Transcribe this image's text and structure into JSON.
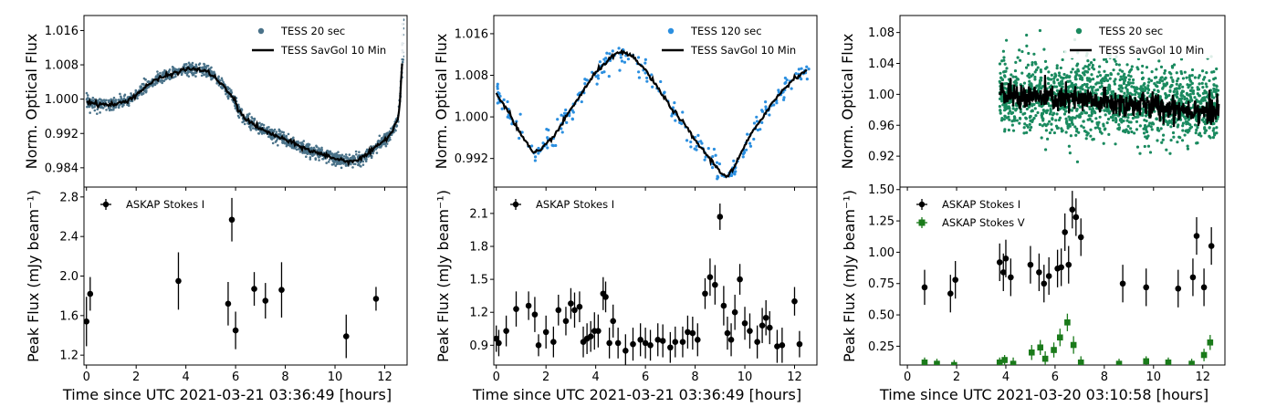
{
  "chart_data": [
    {
      "panel": "A-top",
      "type": "scatter",
      "xlabel": "",
      "ylabel": "Norm. Optical Flux",
      "xlim": [
        -0.1,
        12.9
      ],
      "ylim": [
        0.9795,
        1.0195
      ],
      "yticks": [
        "1.016",
        "1.008",
        "1.000",
        "0.992",
        "0.984"
      ],
      "ytick_values": [
        1.016,
        1.008,
        1.0,
        0.992,
        0.984
      ],
      "xticks": [
        0,
        2,
        4,
        6,
        8,
        10,
        12
      ],
      "colors": {
        "points": "#4a7289",
        "curve": "#000000"
      },
      "series": [
        {
          "name": "TESS 20 sec",
          "style": "dense points"
        },
        {
          "name": "TESS SavGol 10 Min",
          "style": "line",
          "x": [
            0.0,
            0.3,
            0.8,
            1.2,
            1.6,
            2.0,
            2.5,
            3.0,
            3.5,
            4.0,
            4.5,
            5.0,
            5.5,
            5.8,
            5.95,
            6.1,
            6.4,
            7.0,
            8.0,
            9.0,
            10.0,
            10.5,
            11.0,
            11.5,
            12.0,
            12.3,
            12.5,
            12.6,
            12.7
          ],
          "y": [
            0.9995,
            0.999,
            0.9987,
            0.9988,
            0.9995,
            1.001,
            1.0035,
            1.005,
            1.006,
            1.007,
            1.007,
            1.006,
            1.003,
            1.001,
            1.0,
            0.9975,
            0.9955,
            0.993,
            0.9905,
            0.988,
            0.9862,
            0.9855,
            0.986,
            0.988,
            0.9905,
            0.9925,
            0.995,
            0.998,
            1.009
          ]
        }
      ],
      "legend_position": "top-right"
    },
    {
      "panel": "A-bottom",
      "type": "scatter",
      "xlabel": "Time since UTC 2021-03-21 03:36:49 [hours]",
      "ylabel": "Peak Flux (mJy beam⁻¹)",
      "xlim": [
        -0.1,
        12.9
      ],
      "ylim": [
        1.1,
        2.9
      ],
      "yticks": [
        "2.8",
        "2.4",
        "2.0",
        "1.6",
        "1.2"
      ],
      "ytick_values": [
        2.8,
        2.4,
        2.0,
        1.6,
        1.2
      ],
      "xticks": [
        0,
        2,
        4,
        6,
        8,
        10,
        12
      ],
      "series": [
        {
          "name": "ASKAP Stokes I",
          "color": "#000000",
          "x": [
            0.0,
            0.15,
            3.7,
            5.7,
            5.85,
            6.0,
            6.75,
            7.2,
            7.85,
            10.45,
            11.65
          ],
          "y": [
            1.54,
            1.82,
            1.95,
            1.72,
            2.57,
            1.45,
            1.87,
            1.75,
            1.86,
            1.39,
            1.77
          ],
          "err": [
            0.25,
            0.17,
            0.29,
            0.22,
            0.22,
            0.19,
            0.17,
            0.18,
            0.28,
            0.22,
            0.12
          ]
        }
      ],
      "legend_position": "top-left"
    },
    {
      "panel": "B-top",
      "type": "scatter",
      "xlabel": "",
      "ylabel": "Norm. Optical Flux",
      "xlim": [
        -0.1,
        12.9
      ],
      "ylim": [
        0.9865,
        1.0195
      ],
      "yticks": [
        "1.016",
        "1.008",
        "1.000",
        "0.992"
      ],
      "ytick_values": [
        1.016,
        1.008,
        1.0,
        0.992
      ],
      "xticks": [
        0,
        2,
        4,
        6,
        8,
        10,
        12
      ],
      "colors": {
        "points": "#2b8fe0",
        "curve": "#000000"
      },
      "series": [
        {
          "name": "TESS 120 sec",
          "style": "points"
        },
        {
          "name": "TESS SavGol 10 Min",
          "style": "line",
          "x": [
            0.0,
            0.5,
            1.0,
            1.5,
            1.8,
            2.5,
            3.0,
            3.5,
            4.0,
            4.5,
            5.0,
            5.5,
            6.0,
            6.5,
            7.0,
            7.5,
            8.0,
            8.5,
            9.0,
            9.3,
            9.6,
            10.0,
            10.5,
            11.0,
            11.5,
            12.0,
            12.5
          ],
          "y": [
            1.0045,
            1.001,
            0.9965,
            0.993,
            0.9935,
            0.9975,
            1.0015,
            1.005,
            1.0085,
            1.011,
            1.0125,
            1.0115,
            1.009,
            1.0055,
            1.002,
            0.999,
            0.9955,
            0.9925,
            0.9895,
            0.9885,
            0.9905,
            0.9945,
            0.9985,
            1.002,
            1.005,
            1.0075,
            1.009
          ]
        }
      ],
      "legend_position": "top-right"
    },
    {
      "panel": "B-bottom",
      "type": "scatter",
      "xlabel": "Time since UTC 2021-03-21 03:36:49 [hours]",
      "ylabel": "Peak Flux (mJy beam⁻¹)",
      "xlim": [
        -0.1,
        12.9
      ],
      "ylim": [
        0.72,
        2.34
      ],
      "yticks": [
        "2.1",
        "1.8",
        "1.5",
        "1.2",
        "0.9"
      ],
      "ytick_values": [
        2.1,
        1.8,
        1.5,
        1.2,
        0.9
      ],
      "xticks": [
        0,
        2,
        4,
        6,
        8,
        10,
        12
      ],
      "series": [
        {
          "name": "ASKAP Stokes I",
          "color": "#000000",
          "x": [
            0.0,
            0.1,
            0.4,
            0.8,
            1.3,
            1.55,
            1.7,
            2.0,
            2.3,
            2.5,
            2.8,
            3.0,
            3.15,
            3.35,
            3.5,
            3.65,
            3.8,
            3.95,
            4.1,
            4.3,
            4.4,
            4.55,
            4.7,
            4.9,
            5.2,
            5.5,
            5.8,
            6.0,
            6.2,
            6.5,
            6.7,
            7.0,
            7.2,
            7.5,
            7.7,
            7.9,
            8.1,
            8.4,
            8.6,
            8.8,
            9.0,
            9.15,
            9.3,
            9.45,
            9.6,
            9.8,
            10.0,
            10.2,
            10.5,
            10.7,
            10.85,
            11.0,
            11.3,
            11.5,
            12.0,
            12.2
          ],
          "y": [
            0.96,
            0.92,
            1.03,
            1.23,
            1.26,
            1.18,
            0.9,
            1.02,
            0.93,
            1.22,
            1.12,
            1.28,
            1.22,
            1.25,
            0.93,
            0.96,
            0.98,
            1.03,
            1.03,
            1.37,
            1.34,
            0.92,
            1.12,
            0.92,
            0.85,
            0.91,
            0.95,
            0.92,
            0.9,
            0.95,
            0.94,
            0.88,
            0.93,
            0.93,
            1.02,
            1.01,
            0.95,
            1.37,
            1.52,
            1.45,
            2.07,
            1.26,
            1.01,
            0.95,
            1.2,
            1.5,
            1.1,
            1.03,
            0.93,
            1.08,
            1.15,
            1.06,
            0.89,
            0.9,
            1.3,
            0.91
          ],
          "err": [
            0.12,
            0.12,
            0.14,
            0.16,
            0.13,
            0.16,
            0.1,
            0.15,
            0.14,
            0.14,
            0.13,
            0.14,
            0.16,
            0.14,
            0.14,
            0.14,
            0.14,
            0.17,
            0.15,
            0.15,
            0.14,
            0.14,
            0.15,
            0.14,
            0.15,
            0.15,
            0.15,
            0.14,
            0.14,
            0.15,
            0.15,
            0.14,
            0.14,
            0.14,
            0.15,
            0.15,
            0.15,
            0.14,
            0.17,
            0.18,
            0.12,
            0.18,
            0.15,
            0.15,
            0.16,
            0.14,
            0.15,
            0.16,
            0.15,
            0.16,
            0.16,
            0.15,
            0.15,
            0.16,
            0.13,
            0.12
          ]
        }
      ],
      "legend_position": "top-left"
    },
    {
      "panel": "C-top",
      "type": "scatter",
      "xlabel": "",
      "ylabel": "Norm. Optical Flux",
      "xlim": [
        -0.3,
        12.9
      ],
      "ylim": [
        0.88,
        1.102
      ],
      "yticks": [
        "1.08",
        "1.04",
        "1.00",
        "0.96",
        "0.92"
      ],
      "ytick_values": [
        1.08,
        1.04,
        1.0,
        0.96,
        0.92
      ],
      "xticks": [
        0,
        2,
        4,
        6,
        8,
        10,
        12
      ],
      "colors": {
        "points": "#1a8a5f",
        "curve": "#000000"
      },
      "series": [
        {
          "name": "TESS 20 sec",
          "style": "scattered points",
          "x_range": [
            3.75,
            12.65
          ],
          "y_center": 0.999,
          "y_spread": 0.04
        },
        {
          "name": "TESS SavGol 10 Min",
          "style": "noisy line",
          "x_range": [
            3.75,
            12.65
          ],
          "y_start": 1.0,
          "y_end": 0.978
        }
      ],
      "legend_position": "top-right"
    },
    {
      "panel": "C-bottom",
      "type": "scatter",
      "xlabel": "Time since UTC 2021-03-20 03:10:58 [hours]",
      "ylabel": "Peak Flux (mJy beam⁻¹)",
      "xlim": [
        -0.3,
        12.9
      ],
      "ylim": [
        0.1,
        1.52
      ],
      "yticks": [
        "1.50",
        "1.25",
        "1.00",
        "0.75",
        "0.50",
        "0.25"
      ],
      "ytick_values": [
        1.5,
        1.25,
        1.0,
        0.75,
        0.5,
        0.25
      ],
      "xticks": [
        0,
        2,
        4,
        6,
        8,
        10,
        12
      ],
      "series": [
        {
          "name": "ASKAP Stokes I",
          "color": "#000000",
          "x": [
            0.7,
            1.75,
            1.95,
            3.75,
            3.9,
            4.0,
            4.2,
            5.0,
            5.35,
            5.55,
            5.75,
            6.1,
            6.25,
            6.4,
            6.55,
            6.7,
            6.85,
            7.05,
            8.75,
            9.7,
            11.0,
            11.6,
            11.75,
            12.05,
            12.35
          ],
          "y": [
            0.72,
            0.67,
            0.78,
            0.92,
            0.84,
            0.95,
            0.8,
            0.9,
            0.84,
            0.75,
            0.81,
            0.87,
            0.88,
            1.16,
            0.9,
            1.34,
            1.28,
            1.12,
            0.75,
            0.72,
            0.71,
            0.8,
            1.13,
            0.72,
            1.05
          ],
          "err": [
            0.14,
            0.15,
            0.15,
            0.15,
            0.15,
            0.15,
            0.15,
            0.15,
            0.15,
            0.15,
            0.15,
            0.15,
            0.15,
            0.15,
            0.15,
            0.15,
            0.15,
            0.15,
            0.15,
            0.15,
            0.15,
            0.15,
            0.15,
            0.15,
            0.15
          ]
        },
        {
          "name": "ASKAP Stokes V",
          "color": "#1a7a1a",
          "x": [
            0.7,
            1.2,
            1.9,
            3.75,
            3.95,
            4.3,
            5.05,
            5.4,
            5.6,
            5.95,
            6.2,
            6.5,
            6.75,
            7.05,
            8.6,
            9.7,
            10.6,
            11.55,
            12.05,
            12.3
          ],
          "y": [
            0.12,
            0.11,
            0.1,
            0.12,
            0.14,
            0.11,
            0.2,
            0.24,
            0.15,
            0.22,
            0.32,
            0.44,
            0.26,
            0.12,
            0.11,
            0.13,
            0.12,
            0.11,
            0.18,
            0.28
          ],
          "err": [
            0.04,
            0.04,
            0.04,
            0.04,
            0.04,
            0.05,
            0.06,
            0.06,
            0.06,
            0.06,
            0.07,
            0.07,
            0.07,
            0.05,
            0.04,
            0.04,
            0.04,
            0.04,
            0.05,
            0.06
          ]
        }
      ],
      "legend_position": "top-left"
    }
  ]
}
